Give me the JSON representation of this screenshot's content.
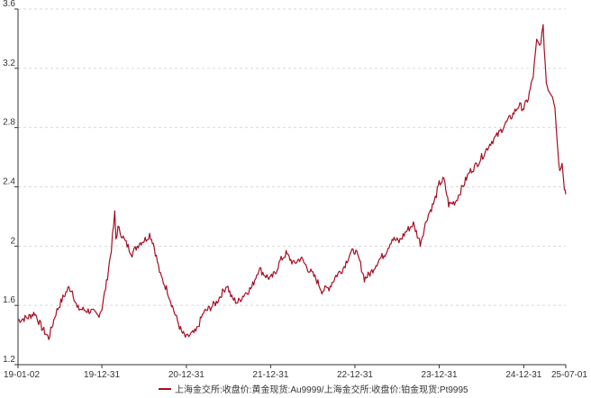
{
  "chart_data": {
    "type": "line",
    "title": "",
    "xlabel": "",
    "ylabel": "",
    "ylim": [
      1.2,
      3.6
    ],
    "y_ticks": [
      "1.2",
      "1.6",
      "2",
      "2.4",
      "2.8",
      "3.2",
      "3.6"
    ],
    "x_ticks": [
      "19-01-02",
      "19-12-31",
      "20-12-31",
      "21-12-31",
      "22-12-31",
      "23-12-31",
      "24-12-31",
      "25-07-01"
    ],
    "grid": "horizontal-dashed",
    "legend_position": "bottom-center",
    "series": [
      {
        "name": "上海金交所:收盘价:黄金现货:Au9999/上海金交所:收盘价:铂金现货:Pt9995",
        "color": "#a50f23",
        "x": [
          "2019-01-02",
          "2019-02-15",
          "2019-03-15",
          "2019-04-15",
          "2019-05-15",
          "2019-06-15",
          "2019-07-15",
          "2019-08-10",
          "2019-08-25",
          "2019-09-15",
          "2019-10-15",
          "2019-11-15",
          "2019-12-15",
          "2019-12-31",
          "2020-01-20",
          "2020-02-10",
          "2020-02-25",
          "2020-03-01",
          "2020-03-10",
          "2020-03-19",
          "2020-04-10",
          "2020-05-10",
          "2020-06-10",
          "2020-07-10",
          "2020-07-25",
          "2020-08-10",
          "2020-09-10",
          "2020-10-10",
          "2020-11-10",
          "2020-12-10",
          "2020-12-31",
          "2021-01-15",
          "2021-02-10",
          "2021-02-25",
          "2021-03-15",
          "2021-04-10",
          "2021-05-10",
          "2021-06-10",
          "2021-06-25",
          "2021-07-15",
          "2021-08-10",
          "2021-09-10",
          "2021-10-10",
          "2021-11-10",
          "2021-12-10",
          "2021-12-31",
          "2022-01-20",
          "2022-02-10",
          "2022-03-08",
          "2022-04-10",
          "2022-05-10",
          "2022-06-10",
          "2022-07-15",
          "2022-08-10",
          "2022-09-10",
          "2022-10-10",
          "2022-11-10",
          "2022-12-10",
          "2022-12-31",
          "2023-01-20",
          "2023-02-10",
          "2023-03-10",
          "2023-04-10",
          "2023-05-10",
          "2023-06-10",
          "2023-07-10",
          "2023-08-10",
          "2023-09-10",
          "2023-10-10",
          "2023-11-10",
          "2023-12-10",
          "2023-12-31",
          "2024-01-20",
          "2024-02-10",
          "2024-03-10",
          "2024-04-10",
          "2024-05-10",
          "2024-06-10",
          "2024-07-10",
          "2024-08-10",
          "2024-09-10",
          "2024-10-10",
          "2024-11-10",
          "2024-12-10",
          "2024-12-31",
          "2025-01-20",
          "2025-02-10",
          "2025-02-25",
          "2025-03-10",
          "2025-03-25",
          "2025-04-08",
          "2025-04-20",
          "2025-05-05",
          "2025-05-15",
          "2025-05-25",
          "2025-06-05",
          "2025-06-15",
          "2025-06-25",
          "2025-07-01"
        ],
        "values": [
          1.5,
          1.52,
          1.55,
          1.45,
          1.38,
          1.55,
          1.65,
          1.72,
          1.7,
          1.58,
          1.57,
          1.56,
          1.53,
          1.58,
          1.75,
          1.98,
          2.22,
          2.05,
          2.12,
          2.1,
          2.03,
          1.95,
          2.02,
          2.05,
          2.08,
          2.02,
          1.8,
          1.7,
          1.55,
          1.42,
          1.38,
          1.4,
          1.42,
          1.48,
          1.55,
          1.58,
          1.62,
          1.7,
          1.74,
          1.65,
          1.62,
          1.68,
          1.72,
          1.85,
          1.8,
          1.78,
          1.82,
          1.9,
          1.95,
          1.88,
          1.92,
          1.85,
          1.78,
          1.7,
          1.72,
          1.8,
          1.85,
          1.95,
          1.97,
          1.9,
          1.78,
          1.82,
          1.9,
          1.95,
          2.05,
          2.03,
          2.1,
          2.15,
          2.02,
          2.2,
          2.3,
          2.42,
          2.45,
          2.28,
          2.3,
          2.4,
          2.5,
          2.55,
          2.62,
          2.7,
          2.75,
          2.82,
          2.88,
          2.95,
          2.93,
          3.0,
          3.15,
          3.38,
          3.35,
          3.47,
          3.1,
          3.05,
          3.02,
          2.95,
          2.7,
          2.5,
          2.58,
          2.4,
          2.35
        ]
      }
    ]
  }
}
